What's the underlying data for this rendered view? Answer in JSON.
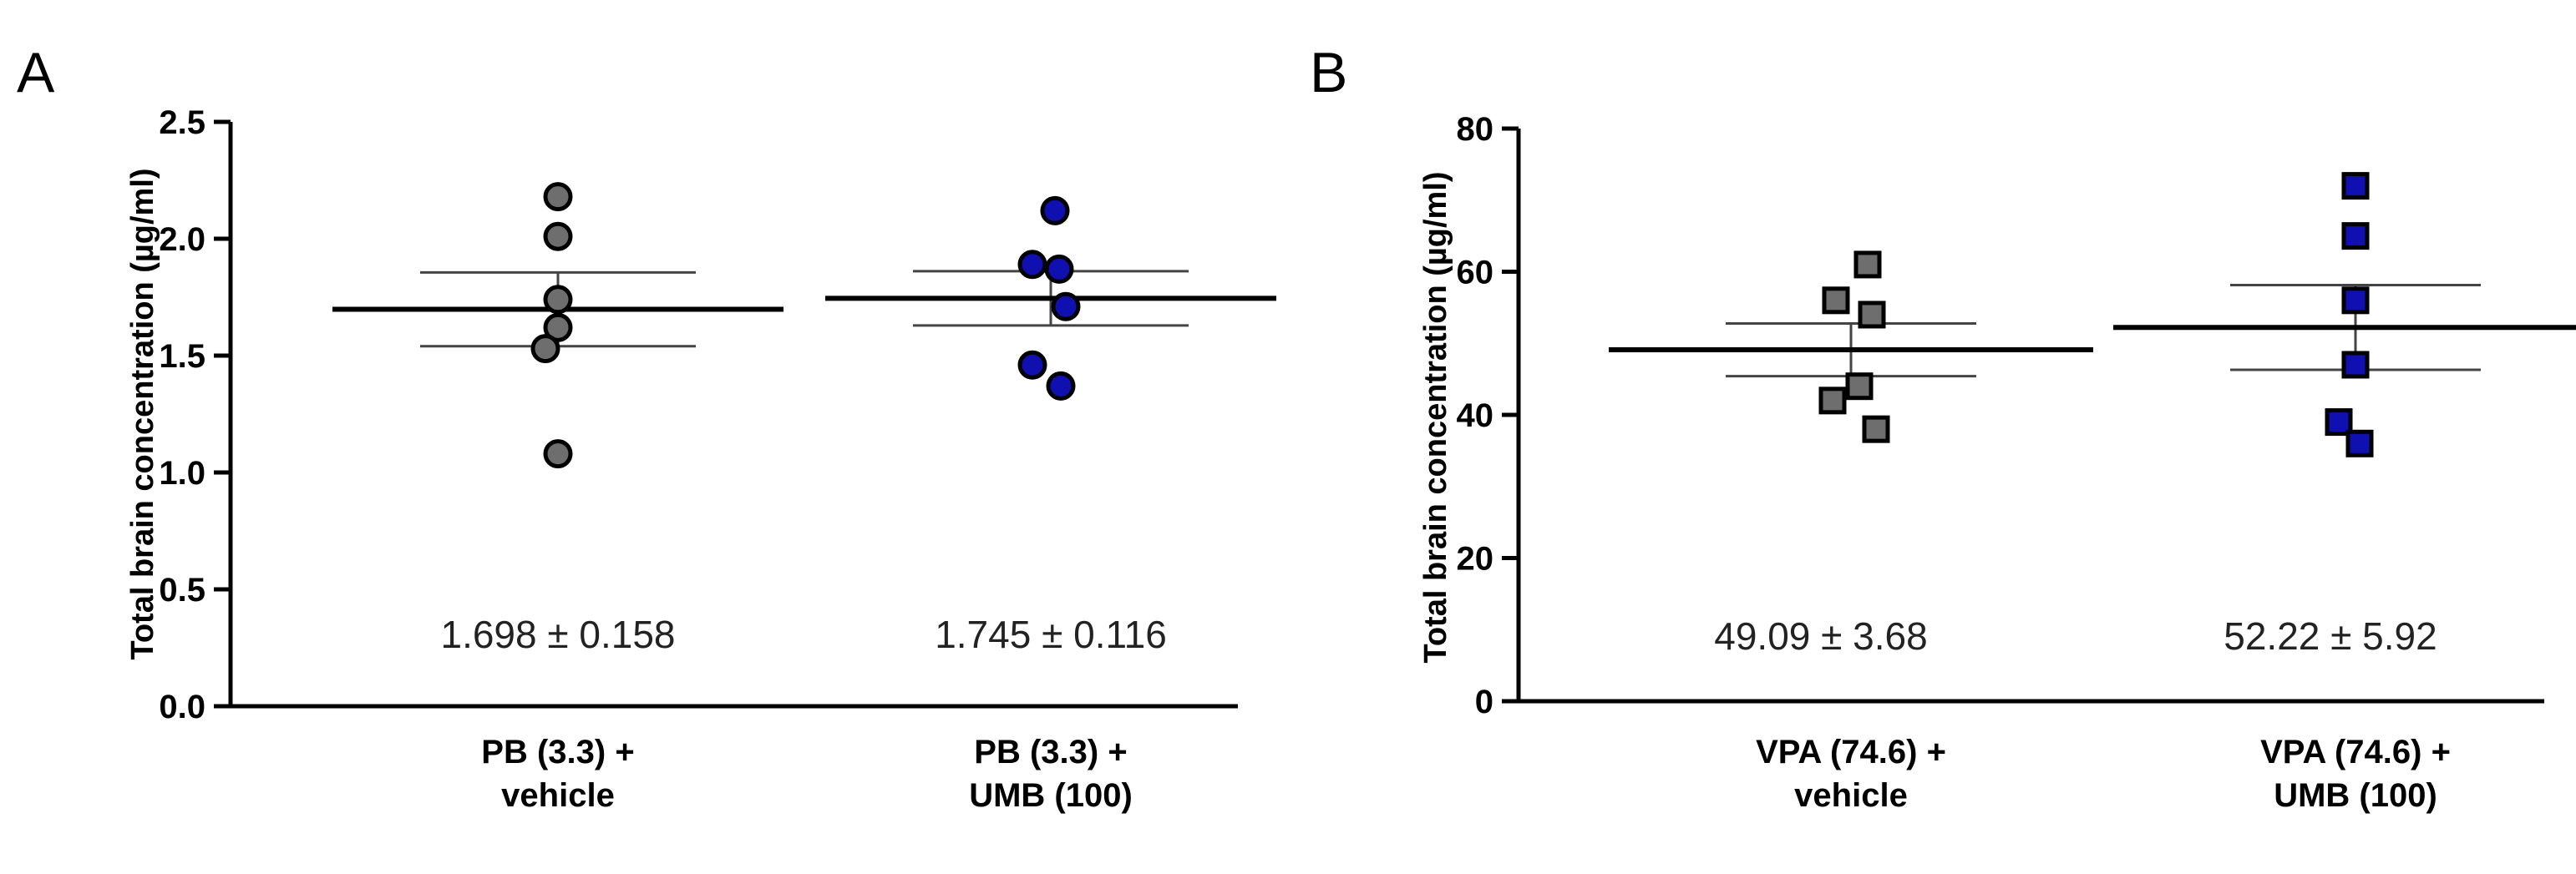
{
  "chart_data": [
    {
      "type": "scatter",
      "panel_label": "A",
      "ylabel": "Total brain concentration (µg/ml)",
      "ylim": [
        0,
        2.5
      ],
      "yticks": [
        "0.0",
        "0.5",
        "1.0",
        "1.5",
        "2.0",
        "2.5"
      ],
      "grid": false,
      "marker": "circle",
      "groups": [
        {
          "label_lines": [
            "PB (3.3) +",
            "vehicle"
          ],
          "color": "#6e6e6e",
          "values": [
            2.18,
            2.01,
            1.74,
            1.62,
            1.53,
            1.08
          ],
          "mean": 1.698,
          "sem": 0.158,
          "annotation": "1.698 ± 0.158"
        },
        {
          "label_lines": [
            "PB (3.3) +",
            "UMB (100)"
          ],
          "color": "#1010b0",
          "values": [
            2.12,
            1.89,
            1.87,
            1.71,
            1.46,
            1.37
          ],
          "mean": 1.745,
          "sem": 0.116,
          "annotation": "1.745 ± 0.116"
        }
      ]
    },
    {
      "type": "scatter",
      "panel_label": "B",
      "ylabel": "Total brain concentration (µg/ml)",
      "ylim": [
        0,
        80
      ],
      "yticks": [
        "0",
        "20",
        "40",
        "60",
        "80"
      ],
      "grid": false,
      "marker": "square",
      "groups": [
        {
          "label_lines": [
            "VPA (74.6) +",
            "vehicle"
          ],
          "color": "#6e6e6e",
          "values": [
            61,
            56,
            54,
            44,
            42,
            38
          ],
          "mean": 49.09,
          "sem": 3.68,
          "annotation": "49.09 ± 3.68"
        },
        {
          "label_lines": [
            "VPA (74.6) +",
            "UMB (100)"
          ],
          "color": "#1010b0",
          "values": [
            72,
            65,
            56,
            47,
            39,
            36
          ],
          "mean": 52.22,
          "sem": 5.92,
          "annotation": "52.22 ± 5.92"
        }
      ]
    }
  ]
}
